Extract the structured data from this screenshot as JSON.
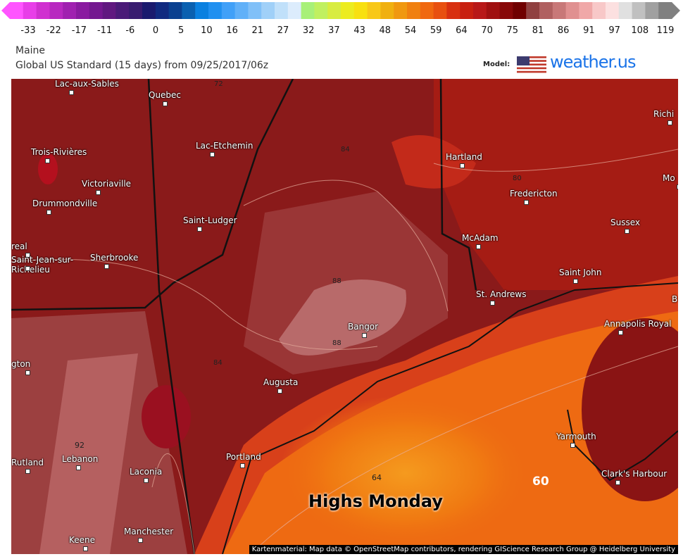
{
  "colorbar": {
    "ticks": [
      "-33",
      "-22",
      "-17",
      "-11",
      "-6",
      "0",
      "5",
      "10",
      "16",
      "21",
      "27",
      "32",
      "37",
      "43",
      "48",
      "54",
      "59",
      "64",
      "70",
      "75",
      "81",
      "86",
      "91",
      "97",
      "108",
      "119"
    ],
    "colors": [
      "#ff55ff",
      "#e83ee8",
      "#d030d0",
      "#b828c0",
      "#a020b0",
      "#8a1aa0",
      "#741890",
      "#601880",
      "#4a1a78",
      "#381c70",
      "#1a1a6e",
      "#102a80",
      "#0a4090",
      "#0a60b0",
      "#0a80e0",
      "#2090f0",
      "#40a0f8",
      "#60b0f8",
      "#80c0f8",
      "#a0d0f8",
      "#c0e0fa",
      "#dcecfc",
      "#a8f078",
      "#c0f060",
      "#d8ec40",
      "#ecec20",
      "#f8e010",
      "#f8c818",
      "#f0b010",
      "#f09810",
      "#f08010",
      "#f06810",
      "#e85010",
      "#d83010",
      "#c82010",
      "#b81818",
      "#a01010",
      "#880808",
      "#700000",
      "#904040",
      "#b06060",
      "#c87878",
      "#e09090",
      "#f0a8a8",
      "#f8c8c8",
      "#fce0e0",
      "#e0e0e0",
      "#c0c0c0",
      "#a0a0a0",
      "#808080"
    ]
  },
  "header": {
    "region": "Maine",
    "subtitle": "Global US Standard (15 days) from 09/25/2017/06z",
    "model_label": "Model:",
    "logo": "weather.us"
  },
  "map": {
    "title": "Highs Monday",
    "attribution": "Kartenmaterial: Map data © OpenStreetMap contributors, rendering GIScience Research Group @ Heidelberg University",
    "cities": [
      "Lac-aux-Sables",
      "Quebec",
      "Trois-Rivières",
      "Lac-Etchemin",
      "Victoriaville",
      "Drummondville",
      "Saint-Ludger",
      "Sherbrooke",
      "real",
      "Saint-Jean-sur-Richelieu",
      "Hartland",
      "Fredericton",
      "McAdam",
      "Sussex",
      "Saint John",
      "St. Andrews",
      "Bangor",
      "Augusta",
      "Portland",
      "Lebanon",
      "Rutland",
      "Laconia",
      "Manchester",
      "Keene",
      "Yarmouth",
      "Clark's Harbour",
      "Annapolis Royal",
      "gton",
      "Richi",
      "Mo",
      "B"
    ],
    "contours": [
      "72",
      "84",
      "80",
      "88",
      "88",
      "84",
      "92",
      "64",
      "60"
    ]
  }
}
